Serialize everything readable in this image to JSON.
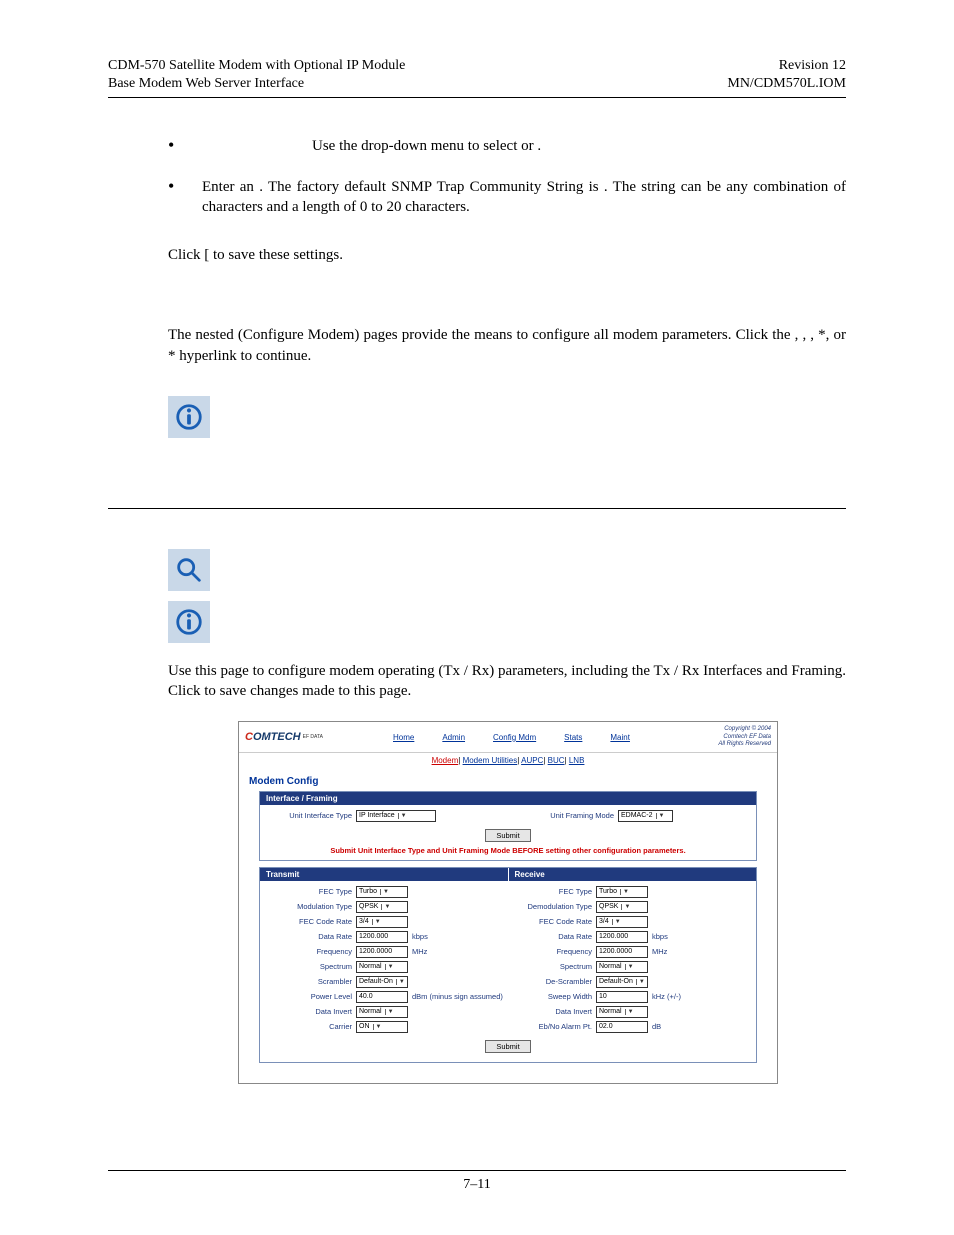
{
  "header": {
    "left1": "CDM-570 Satellite Modem with Optional IP Module",
    "left2": "Base Modem Web Server Interface",
    "right1": "Revision 12",
    "right2": "MN/CDM570L.IOM"
  },
  "bullet1": "Use the drop-down menu to select             or            .",
  "bullet2": "Enter an                                              . The factory default SNMP Trap Community String is              . The string can be any combination of characters and a length of 0 to 20 characters.",
  "clickPara": "Click [                         to save these settings.",
  "configPara": "The nested                    (Configure Modem) pages provide the means to configure all modem parameters. Click the           ,                      ,          ,         *, or         * hyperlink to continue.",
  "usePara": "Use this page to configure modem operating (Tx / Rx) parameters, including the Tx / Rx Interfaces and Framing. Click                to save changes made to this page.",
  "footer": "7–11",
  "screenshot": {
    "logo": {
      "c": "C",
      "rest": "OMTECH",
      "sub": "EF DATA"
    },
    "tabs": [
      "Home",
      "Admin",
      "Config Mdm",
      "Stats",
      "Maint"
    ],
    "subtabs": [
      {
        "label": "Modem",
        "active": true
      },
      {
        "label": "Modem Utilities",
        "active": false
      },
      {
        "label": "AUPC",
        "active": false
      },
      {
        "label": "BUC",
        "active": false
      },
      {
        "label": "LNB",
        "active": false
      }
    ],
    "copyright": [
      "Copyright © 2004",
      "Comtech EF Data",
      "All Rights Reserved"
    ],
    "title": "Modem Config",
    "interfaceGroup": {
      "header": "Interface / Framing",
      "unitInterfaceLabel": "Unit Interface Type",
      "unitInterfaceValue": "IP Interface",
      "unitFramingLabel": "Unit Framing Mode",
      "unitFramingValue": "EDMAC-2",
      "submit": "Submit",
      "warn": "Submit Unit Interface Type and Unit Framing Mode BEFORE setting other configuration parameters."
    },
    "txrx": {
      "txHeader": "Transmit",
      "rxHeader": "Receive",
      "tx": [
        {
          "label": "FEC Type",
          "type": "select",
          "value": "Turbo"
        },
        {
          "label": "Modulation Type",
          "type": "select",
          "value": "QPSK"
        },
        {
          "label": "FEC Code Rate",
          "type": "select",
          "value": "3/4"
        },
        {
          "label": "Data Rate",
          "type": "input",
          "value": "1200.000",
          "unit": "kbps"
        },
        {
          "label": "Frequency",
          "type": "input",
          "value": "1200.0000",
          "unit": "MHz"
        },
        {
          "label": "Spectrum",
          "type": "select",
          "value": "Normal"
        },
        {
          "label": "Scrambler",
          "type": "select",
          "value": "Default-On"
        },
        {
          "label": "Power Level",
          "type": "input",
          "value": "40.0",
          "unit": "dBm (minus sign assumed)"
        },
        {
          "label": "Data Invert",
          "type": "select",
          "value": "Normal"
        },
        {
          "label": "Carrier",
          "type": "select",
          "value": "ON"
        }
      ],
      "rx": [
        {
          "label": "FEC Type",
          "type": "select",
          "value": "Turbo"
        },
        {
          "label": "Demodulation Type",
          "type": "select",
          "value": "QPSK"
        },
        {
          "label": "FEC Code Rate",
          "type": "select",
          "value": "3/4"
        },
        {
          "label": "Data Rate",
          "type": "input",
          "value": "1200.000",
          "unit": "kbps"
        },
        {
          "label": "Frequency",
          "type": "input",
          "value": "1200.0000",
          "unit": "MHz"
        },
        {
          "label": "Spectrum",
          "type": "select",
          "value": "Normal"
        },
        {
          "label": "De-Scrambler",
          "type": "select",
          "value": "Default-On"
        },
        {
          "label": "Sweep Width",
          "type": "input",
          "value": "10",
          "unit": "kHz (+/-)"
        },
        {
          "label": "Data Invert",
          "type": "select",
          "value": "Normal"
        },
        {
          "label": "Eb/No Alarm Pt.",
          "type": "input",
          "value": "02.0",
          "unit": "dB"
        }
      ],
      "submit": "Submit"
    }
  },
  "colors": {
    "panelHeader": "#203a7e",
    "link": "#003399",
    "warn": "#cc0000",
    "iconBg": "#c9d8e8",
    "iconStroke": "#1a5fb4"
  }
}
